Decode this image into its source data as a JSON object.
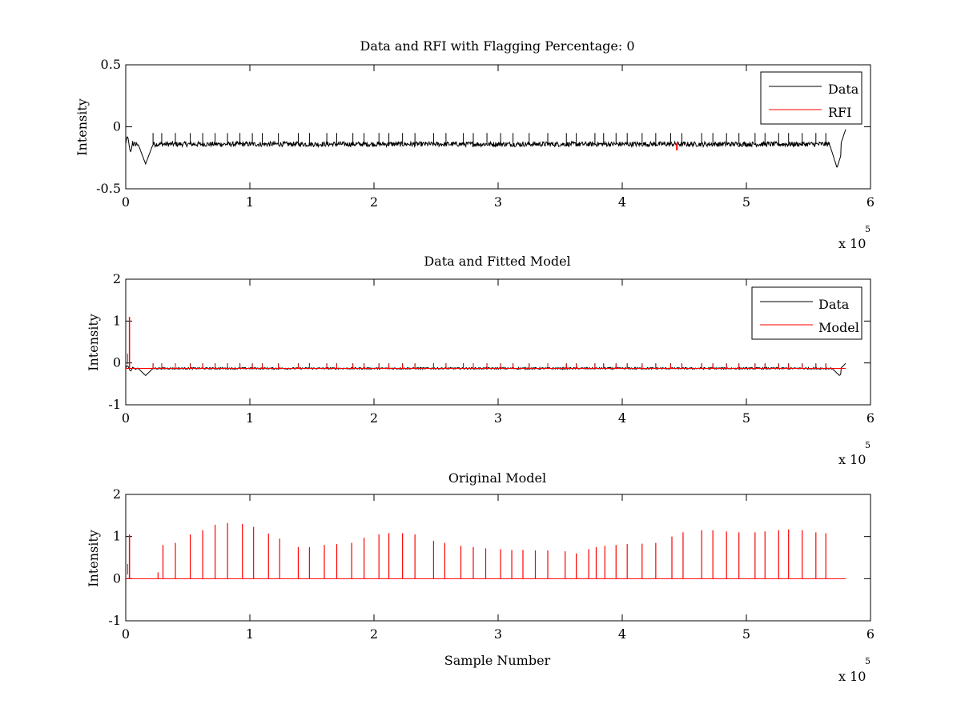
{
  "figure": {
    "background": "#ffffff",
    "axis_color": "#000000"
  },
  "chart_data": [
    {
      "type": "line",
      "title": "Data and RFI with Flagging Percentage: 0",
      "xlabel": "",
      "ylabel": "Intensity",
      "xlim": [
        0,
        6
      ],
      "ylim": [
        -0.5,
        0.5
      ],
      "xticks": [
        "0",
        "1",
        "2",
        "3",
        "4",
        "5",
        "6"
      ],
      "yticks": [
        "-0.5",
        "0",
        "0.5"
      ],
      "x_multiplier": "x 10",
      "x_multiplier_exp": "5",
      "legend_position": "top-right",
      "grid": false,
      "series": [
        {
          "name": "Data",
          "color": "#000000",
          "baseline": -0.14,
          "noise": 0.02,
          "spike_height": 0.09,
          "spike_x": [
            0.22,
            0.29,
            0.4,
            0.52,
            0.62,
            0.72,
            0.82,
            0.92,
            1.02,
            1.1,
            1.23,
            1.39,
            1.48,
            1.62,
            1.7,
            1.83,
            1.92,
            2.04,
            2.12,
            2.23,
            2.33,
            2.48,
            2.58,
            2.72,
            2.8,
            2.91,
            3.02,
            3.12,
            3.25,
            3.4,
            3.55,
            3.63,
            3.78,
            3.85,
            3.95,
            4.04,
            4.16,
            4.27,
            4.39,
            4.48,
            4.64,
            4.73,
            4.84,
            4.94,
            5.07,
            5.15,
            5.26,
            5.34,
            5.45,
            5.56,
            5.64
          ],
          "dips": [
            {
              "x": 0.16,
              "depth": -0.3
            },
            {
              "x": 5.73,
              "depth": -0.33
            }
          ],
          "end_x": 5.8
        },
        {
          "name": "RFI",
          "color": "#ff0000",
          "points_x": [
            4.44
          ],
          "points_y": [
            -0.16
          ]
        }
      ]
    },
    {
      "type": "line",
      "title": "Data and Fitted Model",
      "xlabel": "",
      "ylabel": "Intensity",
      "xlim": [
        0,
        6
      ],
      "ylim": [
        -1,
        2
      ],
      "xticks": [
        "0",
        "1",
        "2",
        "3",
        "4",
        "5",
        "6"
      ],
      "yticks": [
        "-1",
        "0",
        "1",
        "2"
      ],
      "x_multiplier": "x 10",
      "x_multiplier_exp": "5",
      "legend_position": "top-right",
      "grid": false,
      "series": [
        {
          "name": "Data",
          "color": "#000000",
          "baseline": -0.13,
          "noise": 0.02,
          "spike_height": 0.12,
          "dips": [
            {
              "x": 0.16,
              "depth": -0.3
            },
            {
              "x": 5.75,
              "depth": -0.3
            }
          ],
          "end_x": 5.8
        },
        {
          "name": "Model",
          "color": "#ff0000",
          "baseline": -0.13,
          "spike_height": 0.1,
          "initial_spike": {
            "x": 0.03,
            "y": 1.1
          },
          "end_x": 5.8
        }
      ]
    },
    {
      "type": "line",
      "title": "Original Model",
      "xlabel": "Sample Number",
      "ylabel": "Intensity",
      "xlim": [
        0,
        6
      ],
      "ylim": [
        -1,
        2
      ],
      "xticks": [
        "0",
        "1",
        "2",
        "3",
        "4",
        "5",
        "6"
      ],
      "yticks": [
        "-1",
        "0",
        "1",
        "2"
      ],
      "x_multiplier": "x 10",
      "x_multiplier_exp": "5",
      "grid": false,
      "series": [
        {
          "name": "",
          "color": "#ff0000",
          "baseline": 0,
          "initial_spike": {
            "x": 0.03,
            "y": 1.05
          },
          "spikes": [
            {
              "x": 0.26,
              "y": 0.15
            },
            {
              "x": 0.3,
              "y": 0.8
            },
            {
              "x": 0.4,
              "y": 0.85
            },
            {
              "x": 0.52,
              "y": 1.05
            },
            {
              "x": 0.62,
              "y": 1.15
            },
            {
              "x": 0.72,
              "y": 1.28
            },
            {
              "x": 0.82,
              "y": 1.32
            },
            {
              "x": 0.94,
              "y": 1.3
            },
            {
              "x": 1.03,
              "y": 1.23
            },
            {
              "x": 1.15,
              "y": 1.07
            },
            {
              "x": 1.24,
              "y": 0.95
            },
            {
              "x": 1.39,
              "y": 0.75
            },
            {
              "x": 1.48,
              "y": 0.75
            },
            {
              "x": 1.6,
              "y": 0.8
            },
            {
              "x": 1.7,
              "y": 0.82
            },
            {
              "x": 1.82,
              "y": 0.85
            },
            {
              "x": 1.92,
              "y": 0.97
            },
            {
              "x": 2.04,
              "y": 1.05
            },
            {
              "x": 2.12,
              "y": 1.08
            },
            {
              "x": 2.23,
              "y": 1.08
            },
            {
              "x": 2.33,
              "y": 1.05
            },
            {
              "x": 2.48,
              "y": 0.9
            },
            {
              "x": 2.57,
              "y": 0.85
            },
            {
              "x": 2.7,
              "y": 0.78
            },
            {
              "x": 2.8,
              "y": 0.75
            },
            {
              "x": 2.9,
              "y": 0.72
            },
            {
              "x": 3.02,
              "y": 0.7
            },
            {
              "x": 3.11,
              "y": 0.68
            },
            {
              "x": 3.2,
              "y": 0.68
            },
            {
              "x": 3.3,
              "y": 0.67
            },
            {
              "x": 3.4,
              "y": 0.67
            },
            {
              "x": 3.54,
              "y": 0.65
            },
            {
              "x": 3.63,
              "y": 0.6
            },
            {
              "x": 3.73,
              "y": 0.7
            },
            {
              "x": 3.79,
              "y": 0.75
            },
            {
              "x": 3.86,
              "y": 0.78
            },
            {
              "x": 3.95,
              "y": 0.8
            },
            {
              "x": 4.04,
              "y": 0.82
            },
            {
              "x": 4.16,
              "y": 0.83
            },
            {
              "x": 4.27,
              "y": 0.85
            },
            {
              "x": 4.4,
              "y": 1.0
            },
            {
              "x": 4.49,
              "y": 1.1
            },
            {
              "x": 4.64,
              "y": 1.15
            },
            {
              "x": 4.73,
              "y": 1.15
            },
            {
              "x": 4.84,
              "y": 1.12
            },
            {
              "x": 4.94,
              "y": 1.1
            },
            {
              "x": 5.07,
              "y": 1.1
            },
            {
              "x": 5.15,
              "y": 1.12
            },
            {
              "x": 5.26,
              "y": 1.15
            },
            {
              "x": 5.34,
              "y": 1.17
            },
            {
              "x": 5.45,
              "y": 1.15
            },
            {
              "x": 5.56,
              "y": 1.1
            },
            {
              "x": 5.64,
              "y": 1.08
            }
          ],
          "end_x": 5.8
        }
      ]
    }
  ]
}
